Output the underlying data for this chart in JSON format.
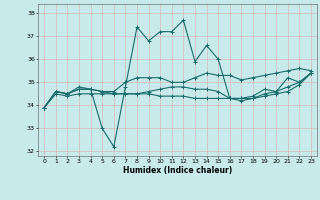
{
  "xlabel": "Humidex (Indice chaleur)",
  "ylabel": "",
  "background_color": "#c8eaea",
  "grid_color": "#d4b8b8",
  "line_color": "#1a6b6b",
  "xlim": [
    -0.5,
    23.5
  ],
  "ylim": [
    31.8,
    38.4
  ],
  "yticks": [
    32,
    33,
    34,
    35,
    36,
    37,
    38
  ],
  "xticks": [
    0,
    1,
    2,
    3,
    4,
    5,
    6,
    7,
    8,
    9,
    10,
    11,
    12,
    13,
    14,
    15,
    16,
    17,
    18,
    19,
    20,
    21,
    22,
    23
  ],
  "series": [
    [
      33.9,
      34.6,
      34.5,
      34.8,
      34.7,
      33.0,
      32.2,
      34.8,
      37.4,
      36.8,
      37.2,
      37.2,
      37.7,
      35.9,
      36.6,
      36.0,
      34.3,
      34.3,
      34.4,
      34.7,
      34.6,
      35.2,
      35.0,
      35.4
    ],
    [
      33.9,
      34.6,
      34.5,
      34.7,
      34.7,
      34.6,
      34.6,
      35.0,
      35.2,
      35.2,
      35.2,
      35.0,
      35.0,
      35.2,
      35.4,
      35.3,
      35.3,
      35.1,
      35.2,
      35.3,
      35.4,
      35.5,
      35.6,
      35.5
    ],
    [
      33.9,
      34.5,
      34.4,
      34.5,
      34.5,
      34.5,
      34.5,
      34.5,
      34.5,
      34.5,
      34.4,
      34.4,
      34.4,
      34.3,
      34.3,
      34.3,
      34.3,
      34.3,
      34.3,
      34.4,
      34.5,
      34.6,
      34.9,
      35.4
    ],
    [
      33.9,
      34.6,
      34.5,
      34.7,
      34.7,
      34.6,
      34.5,
      34.5,
      34.5,
      34.6,
      34.7,
      34.8,
      34.8,
      34.7,
      34.7,
      34.6,
      34.3,
      34.2,
      34.3,
      34.5,
      34.6,
      34.8,
      35.0,
      35.4
    ]
  ]
}
